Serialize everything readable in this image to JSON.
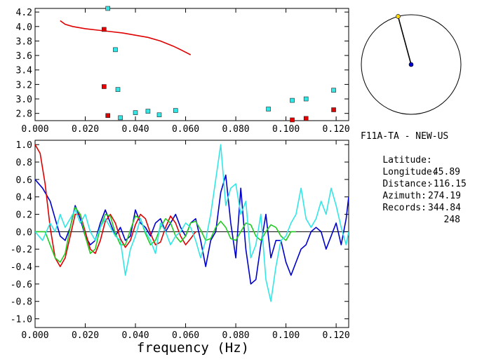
{
  "station": {
    "name": "F11A-TA - NEW-US",
    "latitude_label": "Latitude:",
    "latitude": "45.89",
    "longitude_label": "Longitude:",
    "longitude": "-116.15",
    "distance_label": "Distance:",
    "distance": "274.19",
    "azimuth_label": "Azimuth:",
    "azimuth": "344.84",
    "records_label": "Records:",
    "records": "248"
  },
  "colors": {
    "red": "#e00000",
    "cyan": "#33e6e6",
    "blue": "#0000cc",
    "green": "#22cc22",
    "yellow": "#ffd700",
    "axis": "#000000"
  },
  "chart_data": [
    {
      "type": "scatter",
      "xlim": [
        0.0,
        0.125
      ],
      "ylim": [
        2.7,
        4.25
      ],
      "x_ticks": [
        "0.000",
        "0.020",
        "0.040",
        "0.060",
        "0.080",
        "0.100",
        "0.120"
      ],
      "y_ticks": [
        "2.8",
        "3.0",
        "3.2",
        "3.4",
        "3.6",
        "3.8",
        "4.0",
        "4.2"
      ],
      "curve": {
        "color": "red",
        "x": [
          0.01,
          0.012,
          0.015,
          0.02,
          0.025,
          0.03,
          0.035,
          0.04,
          0.045,
          0.05,
          0.055,
          0.058,
          0.062
        ],
        "y": [
          4.08,
          4.03,
          4.0,
          3.97,
          3.95,
          3.93,
          3.91,
          3.88,
          3.85,
          3.8,
          3.73,
          3.68,
          3.61
        ]
      },
      "points": [
        {
          "x": 0.029,
          "y": 4.25,
          "color": "cyan"
        },
        {
          "x": 0.0275,
          "y": 3.96,
          "color": "red"
        },
        {
          "x": 0.032,
          "y": 3.68,
          "color": "cyan"
        },
        {
          "x": 0.0275,
          "y": 3.17,
          "color": "red"
        },
        {
          "x": 0.033,
          "y": 3.13,
          "color": "cyan"
        },
        {
          "x": 0.029,
          "y": 2.77,
          "color": "red"
        },
        {
          "x": 0.034,
          "y": 2.74,
          "color": "cyan"
        },
        {
          "x": 0.04,
          "y": 2.81,
          "color": "cyan"
        },
        {
          "x": 0.045,
          "y": 2.83,
          "color": "cyan"
        },
        {
          "x": 0.0495,
          "y": 2.78,
          "color": "cyan"
        },
        {
          "x": 0.056,
          "y": 2.84,
          "color": "cyan"
        },
        {
          "x": 0.093,
          "y": 2.86,
          "color": "cyan"
        },
        {
          "x": 0.1025,
          "y": 2.98,
          "color": "cyan"
        },
        {
          "x": 0.1025,
          "y": 2.71,
          "color": "red"
        },
        {
          "x": 0.108,
          "y": 3.0,
          "color": "cyan"
        },
        {
          "x": 0.108,
          "y": 2.73,
          "color": "red"
        },
        {
          "x": 0.119,
          "y": 3.12,
          "color": "cyan"
        },
        {
          "x": 0.119,
          "y": 2.85,
          "color": "red"
        }
      ]
    },
    {
      "type": "line",
      "xlabel": "frequency (Hz)",
      "xlim": [
        0.0,
        0.125
      ],
      "ylim": [
        -1.1,
        1.05
      ],
      "x_ticks": [
        "0.000",
        "0.020",
        "0.040",
        "0.060",
        "0.080",
        "0.100",
        "0.120"
      ],
      "y_ticks": [
        "1.0",
        "0.8",
        "0.6",
        "0.4",
        "0.2",
        "0.0",
        "-0.2",
        "-0.4",
        "-0.6",
        "-0.8",
        "-1.0"
      ],
      "series": [
        {
          "color": "blue",
          "x": [
            0,
            0.003,
            0.006,
            0.008,
            0.01,
            0.012,
            0.014,
            0.016,
            0.018,
            0.02,
            0.022,
            0.024,
            0.026,
            0.028,
            0.03,
            0.032,
            0.034,
            0.036,
            0.038,
            0.04,
            0.042,
            0.044,
            0.046,
            0.048,
            0.05,
            0.052,
            0.054,
            0.056,
            0.058,
            0.06,
            0.062,
            0.064,
            0.066,
            0.068,
            0.07,
            0.072,
            0.074,
            0.076,
            0.078,
            0.08,
            0.082,
            0.084,
            0.086,
            0.088,
            0.09,
            0.092,
            0.094,
            0.096,
            0.098,
            0.1,
            0.102,
            0.104,
            0.106,
            0.108,
            0.11,
            0.112,
            0.114,
            0.116,
            0.118,
            0.12,
            0.122,
            0.124,
            0.125
          ],
          "y": [
            0.6,
            0.5,
            0.35,
            0.15,
            -0.05,
            -0.1,
            0.05,
            0.3,
            0.15,
            -0.05,
            -0.15,
            -0.1,
            0.1,
            0.25,
            0.1,
            -0.05,
            0.05,
            -0.1,
            -0.05,
            0.25,
            0.1,
            0.05,
            -0.05,
            0.1,
            0.15,
            0.0,
            0.1,
            0.2,
            0.05,
            -0.05,
            0.1,
            0.15,
            -0.1,
            -0.4,
            -0.1,
            0.0,
            0.45,
            0.65,
            0.1,
            -0.3,
            0.5,
            -0.2,
            -0.6,
            -0.55,
            -0.15,
            0.2,
            -0.3,
            -0.1,
            -0.1,
            -0.35,
            -0.5,
            -0.35,
            -0.2,
            -0.15,
            0.0,
            0.05,
            0.0,
            -0.2,
            -0.05,
            0.1,
            -0.15,
            0.15,
            0.4
          ]
        },
        {
          "color": "red",
          "x": [
            0,
            0.002,
            0.004,
            0.006,
            0.008,
            0.01,
            0.012,
            0.014,
            0.016,
            0.018,
            0.02,
            0.022,
            0.024,
            0.026,
            0.028,
            0.03,
            0.032,
            0.034,
            0.036,
            0.038,
            0.04,
            0.042,
            0.044,
            0.046,
            0.048,
            0.05,
            0.052,
            0.054,
            0.056,
            0.058,
            0.06,
            0.062,
            0.064
          ],
          "y": [
            1.0,
            0.9,
            0.55,
            0.05,
            -0.3,
            -0.4,
            -0.3,
            -0.05,
            0.2,
            0.2,
            0.0,
            -0.2,
            -0.25,
            -0.1,
            0.12,
            0.2,
            0.1,
            -0.08,
            -0.18,
            -0.1,
            0.08,
            0.2,
            0.15,
            -0.02,
            -0.15,
            -0.12,
            0.05,
            0.18,
            0.1,
            -0.05,
            -0.15,
            -0.08,
            0.0
          ]
        },
        {
          "color": "green",
          "x": [
            0.0,
            0.004,
            0.008,
            0.01,
            0.012,
            0.014,
            0.016,
            0.018,
            0.02,
            0.022,
            0.024,
            0.026,
            0.028,
            0.03,
            0.032,
            0.034,
            0.036,
            0.038,
            0.04,
            0.042,
            0.044,
            0.046,
            0.048,
            0.05,
            0.052,
            0.054,
            0.056,
            0.058,
            0.06,
            0.062,
            0.064,
            0.066,
            0.068,
            0.07,
            0.072,
            0.074,
            0.076,
            0.078,
            0.08,
            0.082,
            0.084,
            0.086,
            0.088,
            0.09,
            0.092,
            0.094,
            0.096,
            0.098,
            0.1,
            0.102,
            0.104
          ],
          "y": [
            0.0,
            0.0,
            -0.3,
            -0.35,
            -0.25,
            0.05,
            0.28,
            0.2,
            -0.05,
            -0.25,
            -0.2,
            0.05,
            0.2,
            0.18,
            -0.02,
            -0.15,
            -0.15,
            0.02,
            0.18,
            0.15,
            -0.02,
            -0.15,
            -0.1,
            0.05,
            0.15,
            0.1,
            -0.05,
            -0.12,
            -0.05,
            0.1,
            0.12,
            0.02,
            -0.1,
            -0.08,
            0.05,
            0.12,
            0.05,
            -0.08,
            -0.1,
            0.0,
            0.1,
            0.08,
            -0.05,
            -0.1,
            0.0,
            0.08,
            0.05,
            -0.05,
            -0.1,
            0.0,
            0.0
          ]
        },
        {
          "color": "cyan",
          "x": [
            0.0,
            0.003,
            0.006,
            0.008,
            0.01,
            0.012,
            0.014,
            0.016,
            0.018,
            0.02,
            0.022,
            0.024,
            0.026,
            0.028,
            0.03,
            0.032,
            0.034,
            0.036,
            0.038,
            0.04,
            0.042,
            0.044,
            0.046,
            0.048,
            0.05,
            0.052,
            0.054,
            0.056,
            0.058,
            0.06,
            0.062,
            0.064,
            0.066,
            0.068,
            0.07,
            0.072,
            0.074,
            0.076,
            0.078,
            0.08,
            0.082,
            0.084,
            0.086,
            0.088,
            0.09,
            0.092,
            0.094,
            0.096,
            0.098,
            0.1,
            0.102,
            0.104,
            0.106,
            0.108,
            0.11,
            0.112,
            0.114,
            0.116,
            0.118,
            0.12,
            0.122,
            0.124,
            0.125
          ],
          "y": [
            0.0,
            -0.1,
            0.1,
            0.0,
            0.2,
            0.05,
            0.15,
            0.25,
            0.1,
            0.2,
            0.0,
            -0.1,
            0.05,
            0.15,
            0.05,
            -0.05,
            -0.1,
            -0.5,
            -0.2,
            -0.05,
            0.15,
            0.0,
            -0.1,
            -0.25,
            0.1,
            0.0,
            -0.15,
            -0.05,
            0.0,
            0.1,
            0.05,
            -0.1,
            -0.3,
            -0.1,
            0.2,
            0.6,
            1.0,
            0.3,
            0.5,
            0.55,
            0.2,
            0.35,
            -0.3,
            -0.15,
            0.2,
            -0.55,
            -0.8,
            -0.4,
            -0.1,
            -0.05,
            0.1,
            0.2,
            0.5,
            0.15,
            0.05,
            0.15,
            0.35,
            0.2,
            0.5,
            0.3,
            0.05,
            -0.15,
            0.0
          ]
        }
      ]
    }
  ],
  "azimuth_dial": {
    "azimuth_deg": 344.84
  }
}
